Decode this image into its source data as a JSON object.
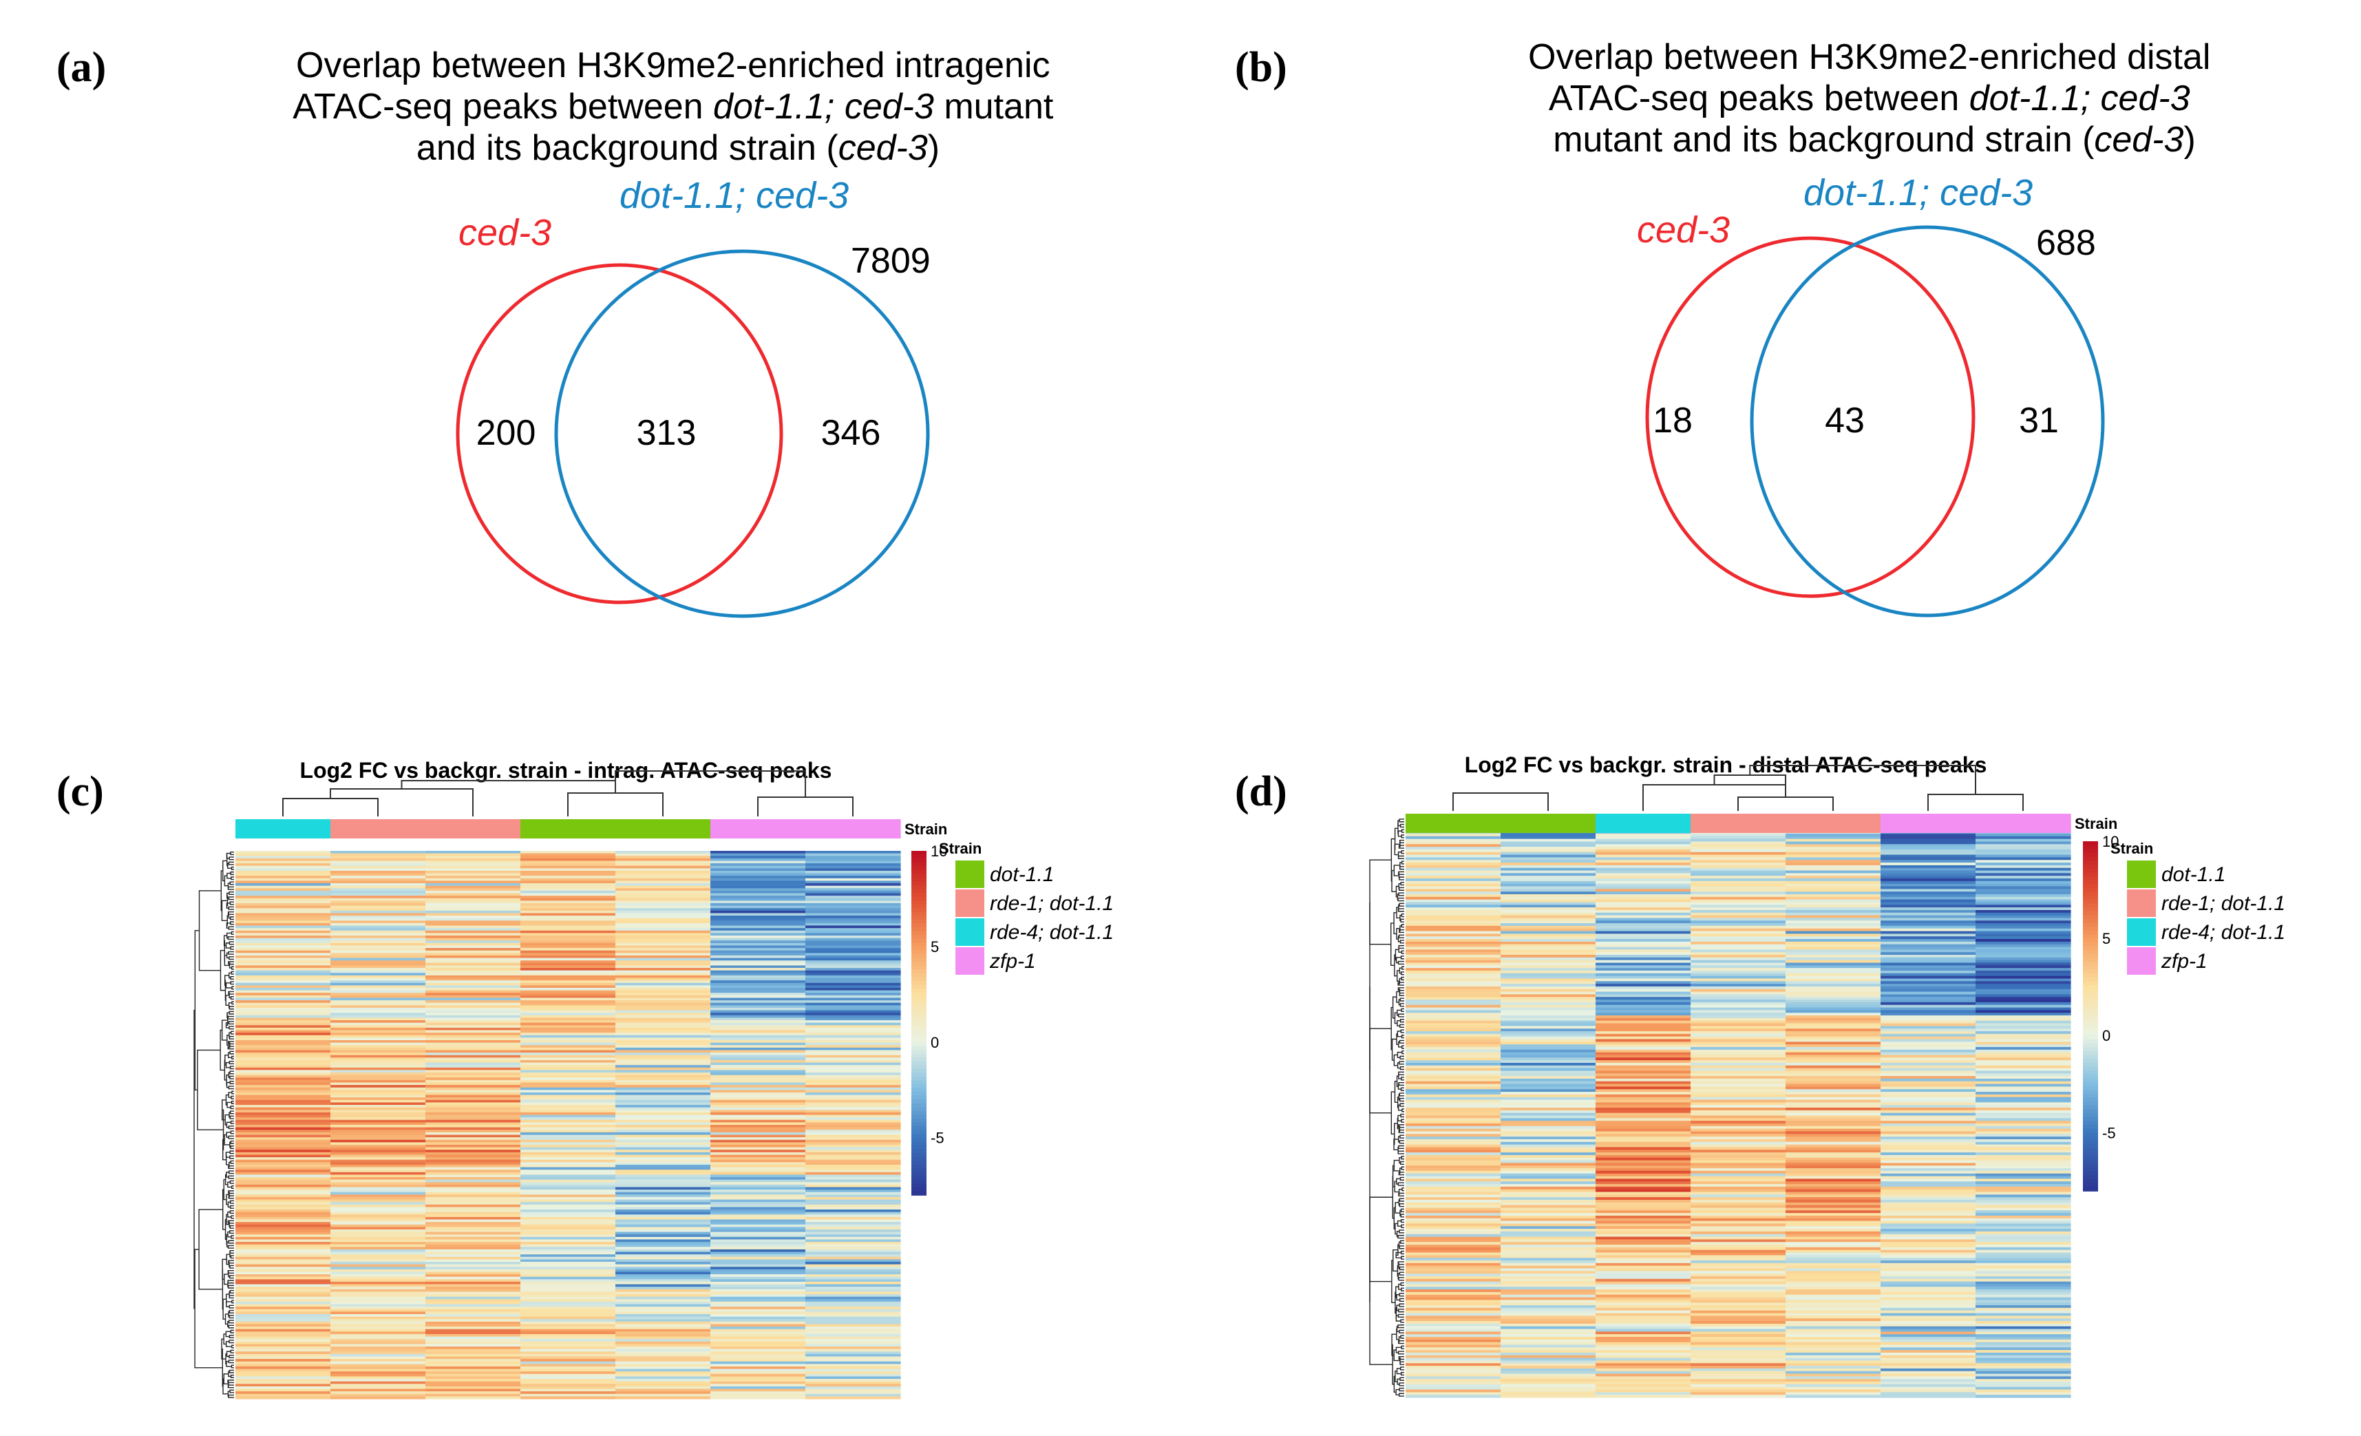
{
  "panels": {
    "a": {
      "label": "(a)",
      "title_lines": [
        [
          {
            "t": "Overlap between H3K9me2-enriched intragenic",
            "i": false
          }
        ],
        [
          {
            "t": "ATAC-seq peaks between ",
            "i": false
          },
          {
            "t": "dot-1.1; ced-3",
            "i": true
          },
          {
            "t": " mutant",
            "i": false
          }
        ],
        [
          {
            "t": "and its background strain (",
            "i": false
          },
          {
            "t": "ced-3",
            "i": true
          },
          {
            "t": ")",
            "i": false
          }
        ]
      ],
      "set_left": "ced-3",
      "set_right": "dot-1.1; ced-3",
      "total_right": "7809",
      "only_left": "200",
      "overlap": "313",
      "only_right": "346"
    },
    "b": {
      "label": "(b)",
      "title_lines": [
        [
          {
            "t": "Overlap between H3K9me2-enriched distal",
            "i": false
          }
        ],
        [
          {
            "t": "ATAC-seq peaks between ",
            "i": false
          },
          {
            "t": "dot-1.1; ced-3",
            "i": true
          }
        ],
        [
          {
            "t": "mutant and its background strain (",
            "i": false
          },
          {
            "t": "ced-3",
            "i": true
          },
          {
            "t": ")",
            "i": false
          }
        ]
      ],
      "set_left": "ced-3",
      "set_right": "dot-1.1; ced-3",
      "total_right": "688",
      "only_left": "18",
      "overlap": "43",
      "only_right": "31"
    },
    "c": {
      "label": "(c)",
      "title": "Log2 FC vs backgr. strain - intrag. ATAC-seq peaks"
    },
    "d": {
      "label": "(d)",
      "title": "Log2 FC vs backgr. strain - distal ATAC-seq peaks"
    }
  },
  "heatmap_common": {
    "strain_label": "Strain",
    "legend_title": "Strain",
    "legend_items": [
      {
        "name": "dot-1.1",
        "color": "#7ac60f"
      },
      {
        "name": "rde-1; dot-1.1",
        "color": "#f6918a"
      },
      {
        "name": "rde-4; dot-1.1",
        "color": "#1dd8dc"
      },
      {
        "name": "zfp-1",
        "color": "#f38ff3"
      }
    ],
    "colorbar_ticks": [
      "10",
      "5",
      "0",
      "-5"
    ],
    "scale": {
      "min": -8,
      "max": 10
    },
    "colors": {
      "venn_left": "#ee2a2f",
      "venn_right": "#1a85c3"
    }
  },
  "chart_data": [
    {
      "type": "heatmap",
      "panel": "c",
      "title": "Log2 FC vs backgr. strain - intrag. ATAC-seq peaks",
      "value_range": [
        -8,
        10
      ],
      "columns": [
        {
          "strain": "rde-4; dot-1.1"
        },
        {
          "strain": "rde-1; dot-1.1"
        },
        {
          "strain": "rde-1; dot-1.1"
        },
        {
          "strain": "dot-1.1"
        },
        {
          "strain": "dot-1.1"
        },
        {
          "strain": "zfp-1"
        },
        {
          "strain": "zfp-1"
        }
      ],
      "row_profiles": [
        {
          "rows": [
            0,
            30
          ],
          "values": [
            1,
            1,
            1,
            2,
            1,
            -4,
            -4
          ]
        },
        {
          "rows": [
            30,
            70
          ],
          "values": [
            2,
            1,
            2,
            3,
            2,
            -3,
            -4
          ]
        },
        {
          "rows": [
            70,
            95
          ],
          "values": [
            4,
            3,
            3,
            2,
            1,
            0,
            1
          ]
        },
        {
          "rows": [
            95,
            130
          ],
          "values": [
            5,
            4,
            4,
            1,
            0,
            3,
            2
          ]
        },
        {
          "rows": [
            130,
            175
          ],
          "values": [
            3,
            2,
            2,
            0,
            -2,
            -2,
            -1
          ]
        },
        {
          "rows": [
            175,
            220
          ],
          "values": [
            2,
            2,
            2,
            2,
            1,
            1,
            0
          ]
        }
      ],
      "n_rows": 220
    },
    {
      "type": "heatmap",
      "panel": "d",
      "title": "Log2 FC vs backgr. strain - distal ATAC-seq peaks",
      "value_range": [
        -8,
        10
      ],
      "columns": [
        {
          "strain": "dot-1.1"
        },
        {
          "strain": "dot-1.1"
        },
        {
          "strain": "rde-4; dot-1.1"
        },
        {
          "strain": "rde-1; dot-1.1"
        },
        {
          "strain": "rde-1; dot-1.1"
        },
        {
          "strain": "zfp-1"
        },
        {
          "strain": "zfp-1"
        }
      ],
      "row_profiles": [
        {
          "rows": [
            0,
            35
          ],
          "values": [
            1,
            -1,
            1,
            1,
            1,
            -4,
            -3
          ]
        },
        {
          "rows": [
            35,
            75
          ],
          "values": [
            2,
            1,
            -2,
            0,
            0,
            -4,
            -5
          ]
        },
        {
          "rows": [
            75,
            110
          ],
          "values": [
            1,
            -1,
            4,
            2,
            3,
            1,
            0
          ]
        },
        {
          "rows": [
            110,
            160
          ],
          "values": [
            2,
            1,
            5,
            3,
            4,
            1,
            0
          ]
        },
        {
          "rows": [
            160,
            220
          ],
          "values": [
            2,
            1,
            2,
            2,
            1,
            0,
            -1
          ]
        }
      ],
      "n_rows": 220
    }
  ]
}
